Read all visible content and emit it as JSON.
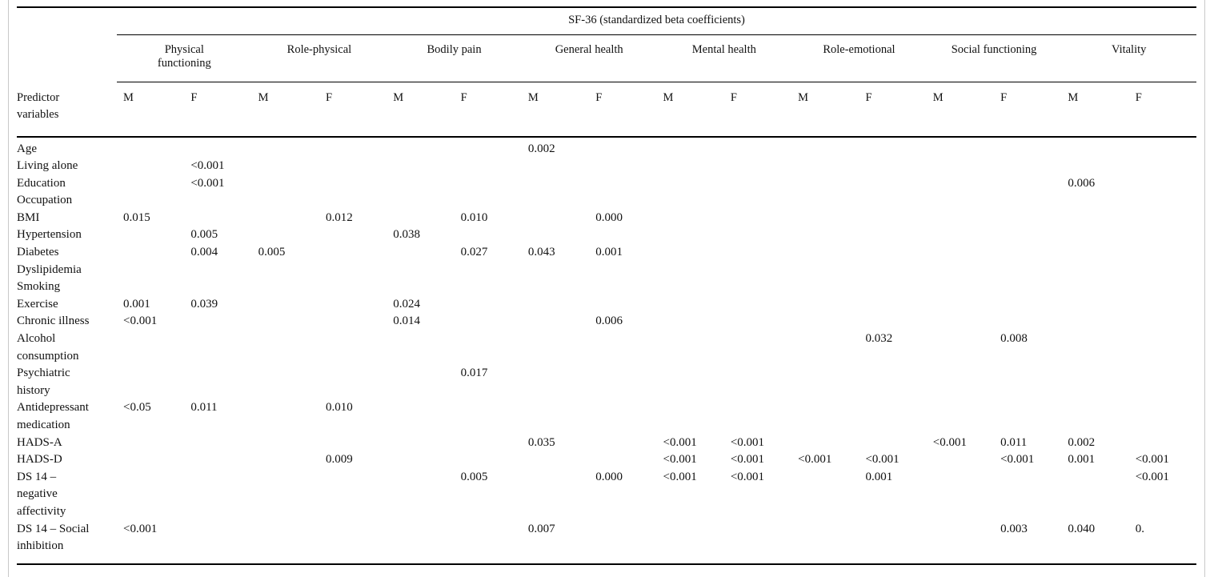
{
  "page": {
    "background": "#ffffff",
    "frame_border_color": "#c9c9c9",
    "rule_color": "#000000",
    "text_color": "#111111"
  },
  "table": {
    "spanner": "SF-36 (standardized beta coefficients)",
    "row_header": "Predictor variables",
    "groups": [
      "Physical functioning",
      "Role-physical",
      "Bodily pain",
      "General health",
      "Mental health",
      "Role-emotional",
      "Social functioning",
      "Vitality"
    ],
    "sex_labels": [
      "M",
      "F"
    ],
    "column_keys": [
      "PF-M",
      "PF-F",
      "RP-M",
      "RP-F",
      "BP-M",
      "BP-F",
      "GH-M",
      "GH-F",
      "MH-M",
      "MH-F",
      "RE-M",
      "RE-F",
      "SF-M",
      "SF-F",
      "V-M",
      "V-F"
    ],
    "rows": [
      {
        "label": "Age",
        "values": [
          "",
          "",
          "",
          "",
          "",
          "",
          "0.002",
          "",
          "",
          "",
          "",
          "",
          "",
          "",
          "",
          ""
        ]
      },
      {
        "label": "Living alone",
        "values": [
          "",
          "<0.001",
          "",
          "",
          "",
          "",
          "",
          "",
          "",
          "",
          "",
          "",
          "",
          "",
          "",
          ""
        ]
      },
      {
        "label": "Education",
        "values": [
          "",
          "<0.001",
          "",
          "",
          "",
          "",
          "",
          "",
          "",
          "",
          "",
          "",
          "",
          "",
          "0.006",
          ""
        ]
      },
      {
        "label": "Occupation",
        "values": [
          "",
          "",
          "",
          "",
          "",
          "",
          "",
          "",
          "",
          "",
          "",
          "",
          "",
          "",
          "",
          ""
        ]
      },
      {
        "label": "BMI",
        "values": [
          "0.015",
          "",
          "",
          "0.012",
          "",
          "0.010",
          "",
          "0.000",
          "",
          "",
          "",
          "",
          "",
          "",
          "",
          ""
        ]
      },
      {
        "label": "Hypertension",
        "values": [
          "",
          "0.005",
          "",
          "",
          "0.038",
          "",
          "",
          "",
          "",
          "",
          "",
          "",
          "",
          "",
          "",
          ""
        ]
      },
      {
        "label": "Diabetes",
        "values": [
          "",
          "0.004",
          "0.005",
          "",
          "",
          "0.027",
          "0.043",
          "0.001",
          "",
          "",
          "",
          "",
          "",
          "",
          "",
          ""
        ]
      },
      {
        "label": "Dyslipidemia",
        "values": [
          "",
          "",
          "",
          "",
          "",
          "",
          "",
          "",
          "",
          "",
          "",
          "",
          "",
          "",
          "",
          ""
        ]
      },
      {
        "label": "Smoking",
        "values": [
          "",
          "",
          "",
          "",
          "",
          "",
          "",
          "",
          "",
          "",
          "",
          "",
          "",
          "",
          "",
          ""
        ]
      },
      {
        "label": "Exercise",
        "values": [
          "0.001",
          "0.039",
          "",
          "",
          "0.024",
          "",
          "",
          "",
          "",
          "",
          "",
          "",
          "",
          "",
          "",
          ""
        ]
      },
      {
        "label": "Chronic illness",
        "values": [
          "<0.001",
          "",
          "",
          "",
          "0.014",
          "",
          "",
          "0.006",
          "",
          "",
          "",
          "",
          "",
          "",
          "",
          ""
        ]
      },
      {
        "label": "Alcohol consumption",
        "values": [
          "",
          "",
          "",
          "",
          "",
          "",
          "",
          "",
          "",
          "",
          "",
          "0.032",
          "",
          "0.008",
          "",
          ""
        ]
      },
      {
        "label": "Psychiatric history",
        "values": [
          "",
          "",
          "",
          "",
          "",
          "0.017",
          "",
          "",
          "",
          "",
          "",
          "",
          "",
          "",
          "",
          ""
        ]
      },
      {
        "label": "Antidepressant medication",
        "values": [
          "<0.05",
          "0.011",
          "",
          "0.010",
          "",
          "",
          "",
          "",
          "",
          "",
          "",
          "",
          "",
          "",
          "",
          ""
        ]
      },
      {
        "label": "HADS-A",
        "values": [
          "",
          "",
          "",
          "",
          "",
          "",
          "0.035",
          "",
          "<0.001",
          "<0.001",
          "",
          "",
          "<0.001",
          "0.011",
          "0.002",
          ""
        ]
      },
      {
        "label": "HADS-D",
        "values": [
          "",
          "",
          "",
          "0.009",
          "",
          "",
          "",
          "",
          "<0.001",
          "<0.001",
          "<0.001",
          "<0.001",
          "",
          "<0.001",
          "0.001",
          "<0.001"
        ]
      },
      {
        "label": "DS 14 – negative affectivity",
        "values": [
          "",
          "",
          "",
          "",
          "",
          "0.005",
          "",
          "0.000",
          "<0.001",
          "<0.001",
          "",
          "0.001",
          "",
          "",
          "",
          "<0.001"
        ]
      },
      {
        "label": "DS 14 – Social inhibition",
        "values": [
          "<0.001",
          "",
          "",
          "",
          "",
          "",
          "0.007",
          "",
          "",
          "",
          "",
          "",
          "",
          "0.003",
          "0.040",
          "0."
        ]
      }
    ]
  }
}
